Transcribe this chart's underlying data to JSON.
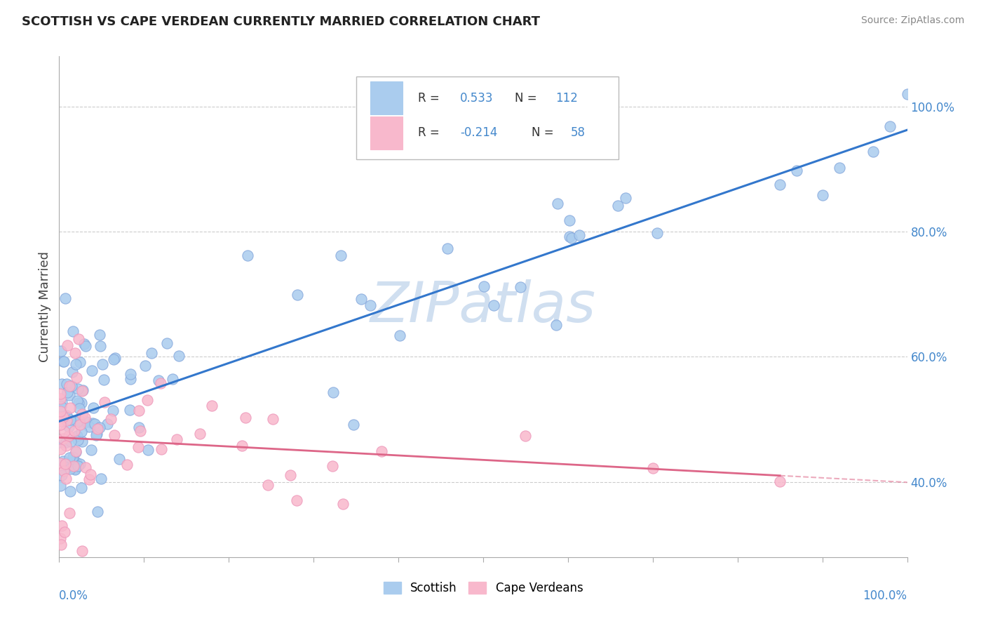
{
  "title": "SCOTTISH VS CAPE VERDEAN CURRENTLY MARRIED CORRELATION CHART",
  "source": "Source: ZipAtlas.com",
  "ylabel": "Currently Married",
  "legend_scottish_R": "0.533",
  "legend_scottish_N": "112",
  "legend_capeverdean_R": "-0.214",
  "legend_capeverdean_N": "58",
  "scottish_color": "#aaccee",
  "scottish_edge": "#88aadd",
  "capeverdean_color": "#f8b8cc",
  "capeverdean_edge": "#ee99bb",
  "trend_scottish_color": "#3377cc",
  "trend_capeverdean_color": "#dd6688",
  "watermark_color": "#d0dff0",
  "right_axis_color": "#4488cc",
  "xlim": [
    0.0,
    1.0
  ],
  "ylim": [
    0.28,
    1.08
  ],
  "right_yticks": [
    0.4,
    0.6,
    0.8,
    1.0
  ],
  "right_yticklabels": [
    "40.0%",
    "60.0%",
    "80.0%",
    "100.0%"
  ],
  "grid_yticks": [
    0.4,
    0.6,
    0.8,
    1.0
  ],
  "scottish_seed": 7,
  "capeverdean_seed": 13
}
